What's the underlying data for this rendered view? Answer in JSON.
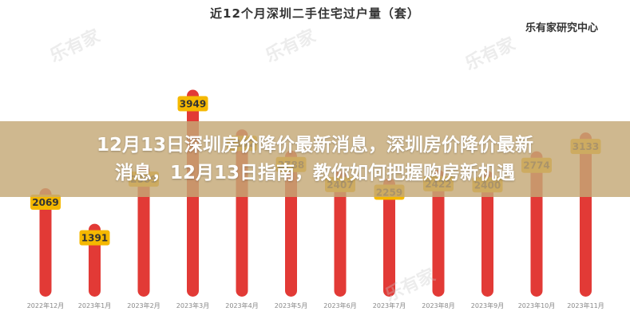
{
  "chart_data": {
    "type": "bar",
    "title": "近12个月深圳二手住宅过户量（套）",
    "source": "乐有家研究中心",
    "categories": [
      "2022年12月",
      "2023年1月",
      "2023年2月",
      "2023年3月",
      "2023年4月",
      "2023年5月",
      "2023年6月",
      "2023年7月",
      "2023年8月",
      "2023年9月",
      "2023年10月",
      "2023年11月"
    ],
    "values": [
      2069,
      1391,
      2509,
      3949,
      3192,
      2788,
      2407,
      2259,
      2422,
      2400,
      2774,
      3133
    ],
    "ylim": [
      0,
      4200
    ],
    "grid": false,
    "colors": {
      "bar": "#e23a36",
      "bar_bg": "#ececec",
      "label_bg": "#f5b800",
      "label_text": "#333333"
    }
  },
  "banner": {
    "line1": "12月13日深圳房价降价最新消息，深圳房价降价最新",
    "line2": "消息，12月13日指南，教你如何把握购房新机遇"
  },
  "watermark": "乐有家"
}
